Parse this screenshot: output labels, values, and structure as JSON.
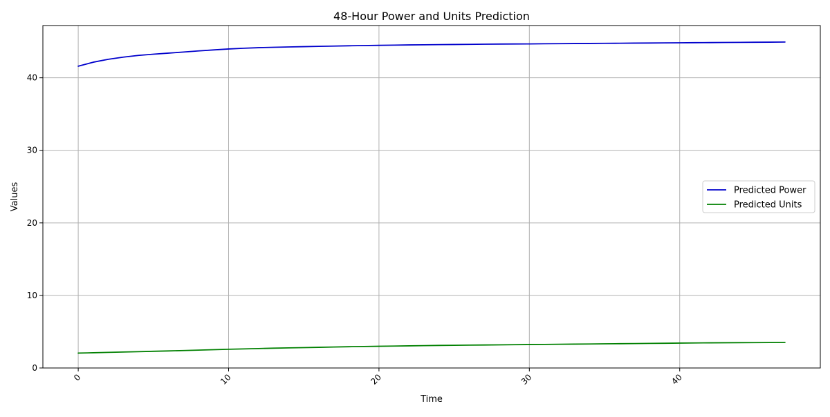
{
  "chart_data": {
    "type": "line",
    "title": "48-Hour Power and Units Prediction",
    "xlabel": "Time",
    "ylabel": "Values",
    "xlim": [
      -2.35,
      49.35
    ],
    "ylim": [
      0,
      47.2
    ],
    "xticks": [
      0,
      10,
      20,
      30,
      40
    ],
    "yticks": [
      0,
      10,
      20,
      30,
      40
    ],
    "x_tick_rotation_deg": 45,
    "grid": true,
    "legend": "center-right",
    "x": [
      0,
      1,
      2,
      3,
      4,
      5,
      6,
      7,
      8,
      9,
      10,
      11,
      12,
      13,
      14,
      15,
      16,
      17,
      18,
      19,
      20,
      21,
      22,
      23,
      24,
      25,
      26,
      27,
      28,
      29,
      30,
      31,
      32,
      33,
      34,
      35,
      36,
      37,
      38,
      39,
      40,
      41,
      42,
      43,
      44,
      45,
      46,
      47
    ],
    "series": [
      {
        "name": "Predicted Power",
        "color": "#0000cc",
        "values": [
          41.6,
          42.15,
          42.55,
          42.85,
          43.08,
          43.25,
          43.4,
          43.55,
          43.7,
          43.84,
          43.97,
          44.07,
          44.15,
          44.2,
          44.25,
          44.29,
          44.33,
          44.37,
          44.41,
          44.44,
          44.47,
          44.5,
          44.53,
          44.55,
          44.57,
          44.59,
          44.61,
          44.63,
          44.65,
          44.66,
          44.67,
          44.69,
          44.7,
          44.72,
          44.73,
          44.75,
          44.76,
          44.78,
          44.79,
          44.81,
          44.82,
          44.84,
          44.85,
          44.87,
          44.88,
          44.9,
          44.91,
          44.93
        ]
      },
      {
        "name": "Predicted Units",
        "color": "#008000",
        "values": [
          2.05,
          2.1,
          2.15,
          2.2,
          2.25,
          2.3,
          2.35,
          2.4,
          2.46,
          2.52,
          2.58,
          2.63,
          2.68,
          2.73,
          2.77,
          2.81,
          2.85,
          2.89,
          2.93,
          2.96,
          2.99,
          3.02,
          3.05,
          3.08,
          3.11,
          3.13,
          3.15,
          3.17,
          3.19,
          3.21,
          3.23,
          3.25,
          3.27,
          3.29,
          3.31,
          3.33,
          3.35,
          3.37,
          3.39,
          3.41,
          3.43,
          3.45,
          3.47,
          3.48,
          3.49,
          3.5,
          3.51,
          3.52
        ]
      }
    ]
  }
}
